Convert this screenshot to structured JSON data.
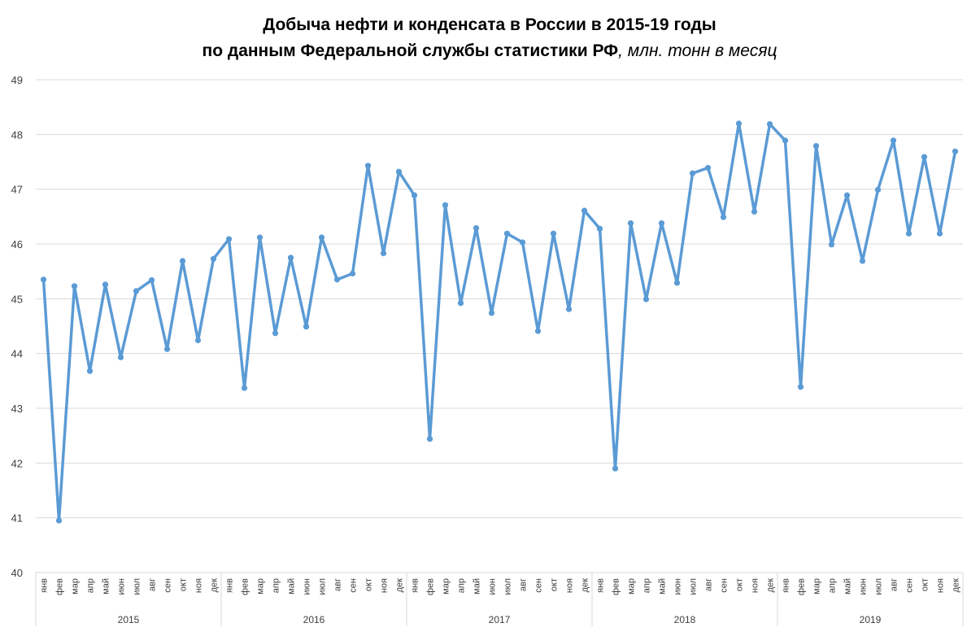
{
  "chart_data": {
    "type": "line",
    "title_line1": "Добыча нефти и конденсата в России в 2015-19 годы",
    "title_line2_bold": "по данным Федеральной службы статистики РФ",
    "title_line2_italic": ", млн. тонн в месяц",
    "ylim": [
      40,
      49
    ],
    "yticks": [
      "40",
      "41",
      "42",
      "43",
      "44",
      "45",
      "46",
      "47",
      "48",
      "49"
    ],
    "grid": true,
    "legend": "none",
    "color": "#5B9BD5",
    "months": [
      "янв",
      "фев",
      "мар",
      "апр",
      "май",
      "июн",
      "июл",
      "авг",
      "сен",
      "окт",
      "ноя",
      "дек"
    ],
    "years": [
      "2015",
      "2016",
      "2017",
      "2018",
      "2019"
    ],
    "values": [
      45.35,
      40.95,
      45.23,
      43.68,
      45.26,
      43.93,
      45.14,
      45.34,
      44.08,
      45.69,
      44.24,
      45.73,
      46.09,
      43.37,
      46.12,
      44.37,
      45.75,
      44.49,
      46.12,
      45.35,
      45.46,
      47.43,
      45.83,
      47.32,
      46.89,
      42.44,
      46.71,
      44.92,
      46.29,
      44.74,
      46.19,
      46.03,
      44.41,
      46.19,
      44.81,
      46.61,
      46.28,
      41.9,
      46.38,
      44.99,
      46.38,
      45.29,
      47.29,
      47.39,
      46.49,
      48.2,
      46.59,
      48.19,
      47.89,
      43.39,
      47.79,
      45.99,
      46.89,
      45.69,
      46.99,
      47.89,
      46.19,
      47.59,
      46.19,
      47.69
    ]
  }
}
